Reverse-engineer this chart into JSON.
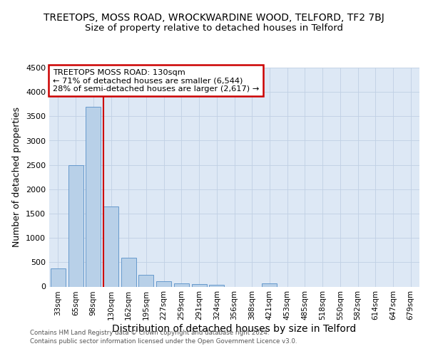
{
  "title": "TREETOPS, MOSS ROAD, WROCKWARDINE WOOD, TELFORD, TF2 7BJ",
  "subtitle": "Size of property relative to detached houses in Telford",
  "xlabel": "Distribution of detached houses by size in Telford",
  "ylabel": "Number of detached properties",
  "bar_labels": [
    "33sqm",
    "65sqm",
    "98sqm",
    "130sqm",
    "162sqm",
    "195sqm",
    "227sqm",
    "259sqm",
    "291sqm",
    "324sqm",
    "356sqm",
    "388sqm",
    "421sqm",
    "453sqm",
    "485sqm",
    "518sqm",
    "550sqm",
    "582sqm",
    "614sqm",
    "647sqm",
    "679sqm"
  ],
  "bar_values": [
    370,
    2500,
    3700,
    1640,
    600,
    240,
    110,
    65,
    50,
    40,
    0,
    0,
    60,
    0,
    0,
    0,
    0,
    0,
    0,
    0,
    0
  ],
  "vline_index": 3,
  "bar_color": "#b8d0e8",
  "bar_edge_color": "#6699cc",
  "vline_color": "#cc0000",
  "annotation_line1": "TREETOPS MOSS ROAD: 130sqm",
  "annotation_line2": "← 71% of detached houses are smaller (6,544)",
  "annotation_line3": "28% of semi-detached houses are larger (2,617) →",
  "annotation_box_color": "#ffffff",
  "annotation_box_edge": "#cc0000",
  "ylim": [
    0,
    4500
  ],
  "yticks": [
    0,
    500,
    1000,
    1500,
    2000,
    2500,
    3000,
    3500,
    4000,
    4500
  ],
  "footer1": "Contains HM Land Registry data © Crown copyright and database right 2024.",
  "footer2": "Contains public sector information licensed under the Open Government Licence v3.0.",
  "plot_bg_color": "#dde8f5",
  "title_fontsize": 10,
  "subtitle_fontsize": 9.5,
  "ylabel_fontsize": 9,
  "xlabel_fontsize": 10
}
